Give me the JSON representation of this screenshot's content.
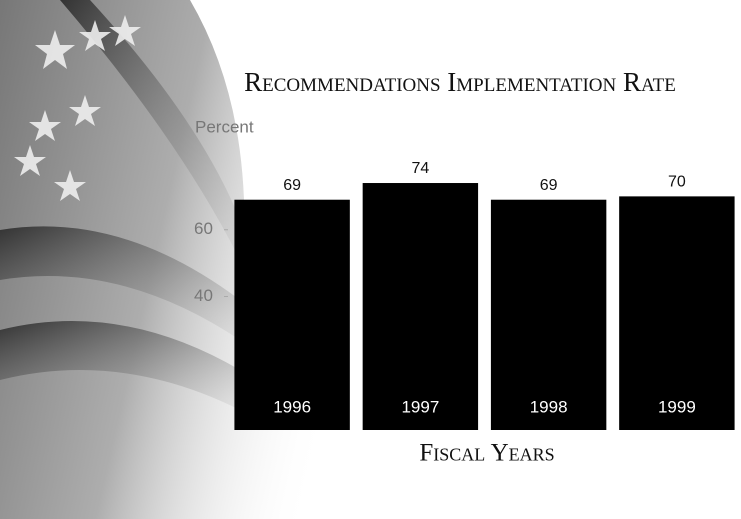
{
  "chart_data": {
    "type": "bar",
    "title": "Recommendations Implementation Rate",
    "y_label": "Percent",
    "x_label": "Fiscal Years",
    "categories": [
      "1996",
      "1997",
      "1998",
      "1999"
    ],
    "values": [
      69,
      74,
      69,
      70
    ],
    "color": "#000000",
    "ylim": [
      0,
      80
    ],
    "yticks": [
      40,
      60
    ]
  }
}
